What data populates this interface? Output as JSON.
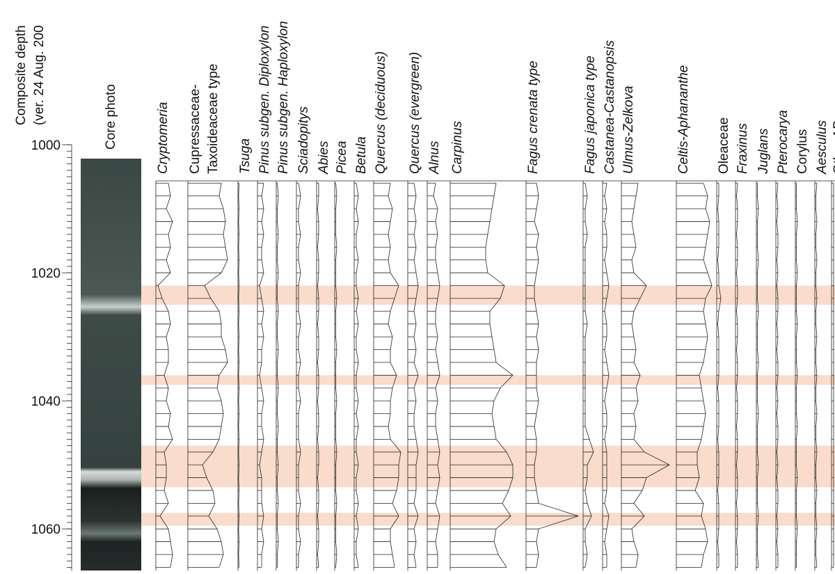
{
  "chart_data": {
    "type": "pollen-diagram",
    "axis_label": [
      "Composite depth",
      "(ver. 24 Aug. 200"
    ],
    "photo_label": "Core photo",
    "ylim": [
      1000,
      1066.5
    ],
    "yticks": [
      1000,
      1020,
      1040,
      1060
    ],
    "minor_tick_interval": 1,
    "highlight_color": "#f9dccb",
    "highlights": [
      [
        1022,
        1025
      ],
      [
        1036,
        1037.5
      ],
      [
        1047,
        1053.5
      ],
      [
        1057.5,
        1059.5
      ]
    ],
    "depths": [
      1006,
      1008,
      1010,
      1012,
      1014,
      1016,
      1018,
      1020,
      1022,
      1024,
      1026,
      1028,
      1030,
      1032,
      1034,
      1036,
      1038,
      1040,
      1042,
      1044,
      1046,
      1048,
      1050,
      1052,
      1054,
      1056,
      1058,
      1060,
      1062,
      1064,
      1066
    ],
    "series": [
      {
        "name": [
          "Cryptomeria"
        ],
        "italic": true,
        "values": [
          6,
          7,
          5,
          8,
          6,
          7,
          5,
          7,
          1,
          3,
          6,
          7,
          5,
          6,
          6,
          4,
          6,
          5,
          7,
          6,
          8,
          4,
          5,
          5,
          4,
          6,
          2,
          6,
          7,
          8,
          7
        ]
      },
      {
        "name": [
          "Cupressaceae-",
          "Taxoideaceae type"
        ],
        "italic": false,
        "values": [
          16,
          15,
          17,
          18,
          17,
          18,
          19,
          16,
          8,
          11,
          15,
          16,
          16,
          18,
          19,
          15,
          14,
          16,
          17,
          16,
          15,
          12,
          7,
          9,
          12,
          13,
          10,
          14,
          16,
          17,
          15
        ]
      },
      {
        "name": [
          "Tsuga"
        ],
        "italic": true,
        "values": [
          0.5,
          0.3,
          0.5,
          0.3,
          0.5,
          0.3,
          0.5,
          0.3,
          0.5,
          0.3,
          0.5,
          0.3,
          0.5,
          0.3,
          0.5,
          0.3,
          0.5,
          0.3,
          0.5,
          0.3,
          0.5,
          0.3,
          0.5,
          0.3,
          0.5,
          0.3,
          0.5,
          0.3,
          0.5,
          0.3,
          0.5
        ]
      },
      {
        "name": [
          "Pinus subgen. Diploxylon"
        ],
        "italic": true,
        "values": [
          3,
          2,
          3,
          2,
          3,
          2,
          2,
          3,
          1,
          2,
          3,
          2,
          3,
          2,
          2,
          1,
          2,
          3,
          2,
          2,
          3,
          2,
          1,
          2,
          2,
          2,
          3,
          2,
          3,
          2,
          2
        ]
      },
      {
        "name": [
          "Pinus subgen. Haploxylon"
        ],
        "italic": true,
        "values": [
          0.5,
          1,
          0.5,
          0.5,
          1,
          0.5,
          0.5,
          1,
          0.5,
          0.5,
          1,
          0.5,
          0.5,
          1,
          0.5,
          0.5,
          1,
          0.5,
          0.5,
          1,
          0.5,
          0.5,
          1,
          0.5,
          0.5,
          1,
          0.5,
          0.5,
          1,
          0.5,
          0.5
        ]
      },
      {
        "name": [
          "Sciadopitys"
        ],
        "italic": true,
        "values": [
          1,
          2,
          1,
          1,
          2,
          1,
          1,
          2,
          1,
          1,
          1,
          2,
          1,
          1,
          2,
          1,
          1,
          2,
          1,
          1,
          1,
          2,
          1,
          1,
          1,
          2,
          1,
          1,
          2,
          1,
          1
        ]
      },
      {
        "name": [
          "Abies"
        ],
        "italic": true,
        "values": [
          1,
          1,
          0.5,
          1,
          1,
          0.5,
          1,
          1,
          0.5,
          1,
          1,
          0.5,
          1,
          1,
          0.5,
          1,
          1,
          0.5,
          1,
          1,
          0.5,
          1,
          1,
          0.5,
          1,
          1,
          0.5,
          1,
          1,
          0.5,
          1
        ]
      },
      {
        "name": [
          "Picea"
        ],
        "italic": true,
        "values": [
          0.5,
          1,
          0.5,
          0.5,
          0.5,
          1,
          0.5,
          0.5,
          0.5,
          1,
          0.5,
          0.5,
          0.5,
          1,
          0.5,
          0.5,
          0.5,
          1,
          0.5,
          0.5,
          0.5,
          1,
          0.5,
          0.5,
          0.5,
          1,
          0.5,
          0.5,
          0.5,
          1,
          0.5
        ]
      },
      {
        "name": [
          "Betula"
        ],
        "italic": true,
        "values": [
          1,
          2,
          1,
          2,
          1,
          1,
          2,
          1,
          1,
          2,
          1,
          2,
          1,
          1,
          2,
          1,
          1,
          2,
          1,
          2,
          1,
          1,
          2,
          1,
          1,
          2,
          1,
          2,
          1,
          1,
          2
        ]
      },
      {
        "name": [
          "Quercus (deciduous)"
        ],
        "italic": true,
        "values": [
          8,
          7,
          9,
          8,
          7,
          8,
          7,
          8,
          12,
          10,
          8,
          7,
          9,
          8,
          8,
          11,
          9,
          8,
          8,
          7,
          8,
          13,
          12,
          12,
          11,
          9,
          12,
          8,
          8,
          9,
          10
        ]
      },
      {
        "name": [
          "Quercus (evergreen)"
        ],
        "italic": true,
        "values": [
          3,
          4,
          3,
          4,
          3,
          4,
          3,
          4,
          5,
          4,
          3,
          4,
          3,
          4,
          3,
          5,
          3,
          4,
          3,
          3,
          4,
          5,
          4,
          4,
          4,
          3,
          5,
          3,
          4,
          3,
          4
        ]
      },
      {
        "name": [
          "Alnus"
        ],
        "italic": true,
        "values": [
          4,
          3,
          5,
          4,
          5,
          4,
          4,
          5,
          6,
          5,
          4,
          4,
          5,
          4,
          5,
          6,
          4,
          5,
          4,
          4,
          5,
          6,
          5,
          6,
          5,
          4,
          6,
          5,
          4,
          5,
          5
        ]
      },
      {
        "name": [
          "Carpinus"
        ],
        "italic": true,
        "values": [
          22,
          21,
          20,
          19,
          18,
          17,
          17,
          18,
          26,
          24,
          19,
          19,
          20,
          21,
          22,
          30,
          24,
          21,
          20,
          21,
          22,
          27,
          30,
          30,
          28,
          25,
          29,
          22,
          21,
          23,
          27
        ]
      },
      {
        "name": [
          "Fagus crenata type"
        ],
        "italic": true,
        "values": [
          5,
          6,
          5,
          4,
          6,
          5,
          6,
          5,
          4,
          4,
          5,
          6,
          5,
          6,
          5,
          5,
          5,
          6,
          5,
          4,
          5,
          5,
          4,
          4,
          5,
          6,
          25,
          6,
          5,
          6,
          5
        ]
      },
      {
        "name": [
          "Fagus japonica type"
        ],
        "italic": true,
        "values": [
          1,
          2,
          1,
          1,
          2,
          1,
          1,
          1,
          1,
          1,
          1,
          2,
          1,
          1,
          1,
          1,
          1,
          1,
          1,
          1,
          3,
          5,
          2,
          2,
          1,
          2,
          4,
          1,
          1,
          2,
          1
        ]
      },
      {
        "name": [
          "Castanea-Castanopsis"
        ],
        "italic": true,
        "values": [
          2,
          1,
          2,
          1,
          2,
          2,
          1,
          2,
          3,
          2,
          1,
          2,
          2,
          1,
          2,
          3,
          2,
          1,
          2,
          2,
          1,
          2,
          2,
          2,
          2,
          1,
          3,
          2,
          1,
          2,
          2
        ]
      },
      {
        "name": [
          "Ulmus-Zelkova"
        ],
        "italic": true,
        "values": [
          8,
          7,
          6,
          5,
          6,
          7,
          5,
          6,
          12,
          9,
          6,
          5,
          6,
          7,
          6,
          9,
          7,
          8,
          6,
          7,
          6,
          11,
          23,
          12,
          10,
          6,
          11,
          5,
          6,
          8,
          7
        ]
      },
      {
        "name": [
          "Celtis-Aphananthe"
        ],
        "italic": true,
        "values": [
          13,
          15,
          14,
          16,
          15,
          14,
          13,
          15,
          17,
          14,
          13,
          14,
          15,
          14,
          13,
          11,
          12,
          13,
          14,
          13,
          12,
          10,
          10,
          11,
          9,
          13,
          12,
          14,
          15,
          13,
          12
        ]
      },
      {
        "name": [
          "Oleaceae"
        ],
        "italic": false,
        "values": [
          1,
          1,
          0.5,
          1,
          1,
          1,
          0.5,
          1,
          1,
          2,
          1,
          0.5,
          1,
          1,
          1,
          1,
          0.5,
          1,
          1,
          1,
          0.5,
          1,
          1,
          1,
          0.5,
          1,
          1,
          1,
          0.5,
          1,
          1
        ]
      },
      {
        "name": [
          "Fraxinus"
        ],
        "italic": true,
        "values": [
          1,
          0.5,
          1,
          1,
          0.5,
          1,
          1,
          0.5,
          1,
          1,
          0.5,
          1,
          1,
          0.5,
          1,
          1,
          0.5,
          1,
          1,
          0.5,
          1,
          1,
          0.5,
          1,
          1,
          0.5,
          1,
          1,
          0.5,
          1,
          1
        ]
      },
      {
        "name": [
          "Juglans"
        ],
        "italic": true,
        "values": [
          0.5,
          0.5,
          1,
          0.5,
          0.5,
          0.5,
          1,
          0.5,
          0.5,
          0.5,
          1,
          0.5,
          0.5,
          0.5,
          1,
          0.5,
          0.5,
          0.5,
          1,
          0.5,
          0.5,
          0.5,
          1,
          0.5,
          0.5,
          0.5,
          1,
          0.5,
          0.5,
          0.5,
          1
        ]
      },
      {
        "name": [
          "Pterocarya"
        ],
        "italic": true,
        "values": [
          1,
          0.5,
          1,
          0.5,
          1,
          1,
          0.5,
          1,
          0.5,
          1,
          1,
          0.5,
          1,
          0.5,
          1,
          1,
          0.5,
          1,
          0.5,
          1,
          1,
          0.5,
          1,
          0.5,
          1,
          1,
          0.5,
          1,
          0.5,
          1,
          1
        ]
      },
      {
        "name": [
          "Corylus"
        ],
        "italic": false,
        "values": [
          0.5,
          0.5,
          0.5,
          1,
          0.5,
          0.5,
          0.5,
          1,
          0.5,
          0.5,
          0.5,
          1,
          0.5,
          0.5,
          0.5,
          1,
          0.5,
          0.5,
          0.5,
          1,
          0.5,
          0.5,
          0.5,
          1,
          0.5,
          0.5,
          0.5,
          1,
          0.5,
          0.5,
          0.5
        ]
      },
      {
        "name": [
          "Aesculus"
        ],
        "italic": true,
        "values": [
          1,
          0.5,
          0.5,
          1,
          0.5,
          0.5,
          1,
          0.5,
          0.5,
          1,
          0.5,
          0.5,
          1,
          0.5,
          0.5,
          1,
          0.5,
          0.5,
          1,
          0.5,
          0.5,
          1,
          0.5,
          0.5,
          1,
          0.5,
          0.5,
          1,
          0.5,
          0.5,
          1
        ]
      },
      {
        "name": [
          "Other AP"
        ],
        "italic": false,
        "values": [
          1,
          1,
          1,
          1,
          1,
          1,
          1,
          1,
          1,
          1,
          1,
          1,
          1,
          1,
          1,
          1,
          1,
          1,
          1,
          1,
          1,
          1,
          1,
          1,
          1,
          1,
          1,
          1,
          1,
          1,
          1
        ]
      }
    ]
  }
}
